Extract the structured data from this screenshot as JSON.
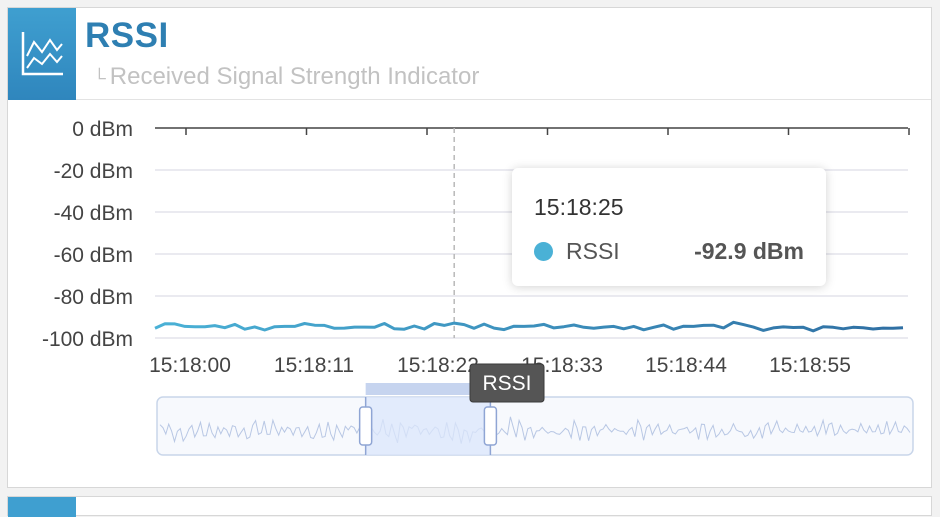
{
  "card": {
    "title": "RSSI",
    "subtitle": "Received Signal Strength Indicator",
    "icon": "line-chart-icon"
  },
  "colors": {
    "accent": "#2e7fb2",
    "series": "#4ab1d6",
    "zoom_fill": "#dbe6fb"
  },
  "tooltip": {
    "time": "15:18:25",
    "series_name": "RSSI",
    "value": "-92.9 dBm"
  },
  "slider": {
    "handle_label": "RSSI",
    "range_start": 0.276,
    "range_end": 0.441
  },
  "chart_data": {
    "type": "line",
    "ylim": [
      -100,
      0
    ],
    "yticks": [
      "0 dBm",
      "-20 dBm",
      "-40 dBm",
      "-60 dBm",
      "-80 dBm",
      "-100 dBm"
    ],
    "xticks": [
      "15:18:00",
      "15:18:11",
      "15:18:22",
      "15:18:33",
      "15:18:44",
      "15:18:55"
    ],
    "grid": true,
    "cursor_time": "15:18:25",
    "series": [
      {
        "name": "RSSI",
        "values": [
          -95.4,
          -93.2,
          -93.3,
          -94.5,
          -94.6,
          -94.6,
          -94.1,
          -95.1,
          -93.5,
          -95.8,
          -94.7,
          -96.2,
          -94.6,
          -94.5,
          -94.5,
          -93.1,
          -93.9,
          -94.0,
          -95.4,
          -95.3,
          -94.8,
          -94.8,
          -94.9,
          -93.1,
          -95.6,
          -95.8,
          -94.3,
          -95.7,
          -93.1,
          -94.0,
          -92.9,
          -93.6,
          -95.4,
          -93.4,
          -95.3,
          -96.0,
          -94.4,
          -94.5,
          -94.3,
          -93.5,
          -95.2,
          -94.6,
          -93.8,
          -94.9,
          -95.4,
          -94.8,
          -94.5,
          -95.6,
          -94.5,
          -96.1,
          -94.9,
          -93.8,
          -95.8,
          -94.4,
          -94.5,
          -94.0,
          -93.9,
          -95.2,
          -92.5,
          -93.6,
          -94.8,
          -96.4,
          -95.2,
          -94.7,
          -95.0,
          -94.9,
          -96.6,
          -94.6,
          -94.9,
          -95.6,
          -94.9,
          -95.1,
          -95.7,
          -95.3,
          -95.4,
          -95.1
        ]
      }
    ]
  }
}
